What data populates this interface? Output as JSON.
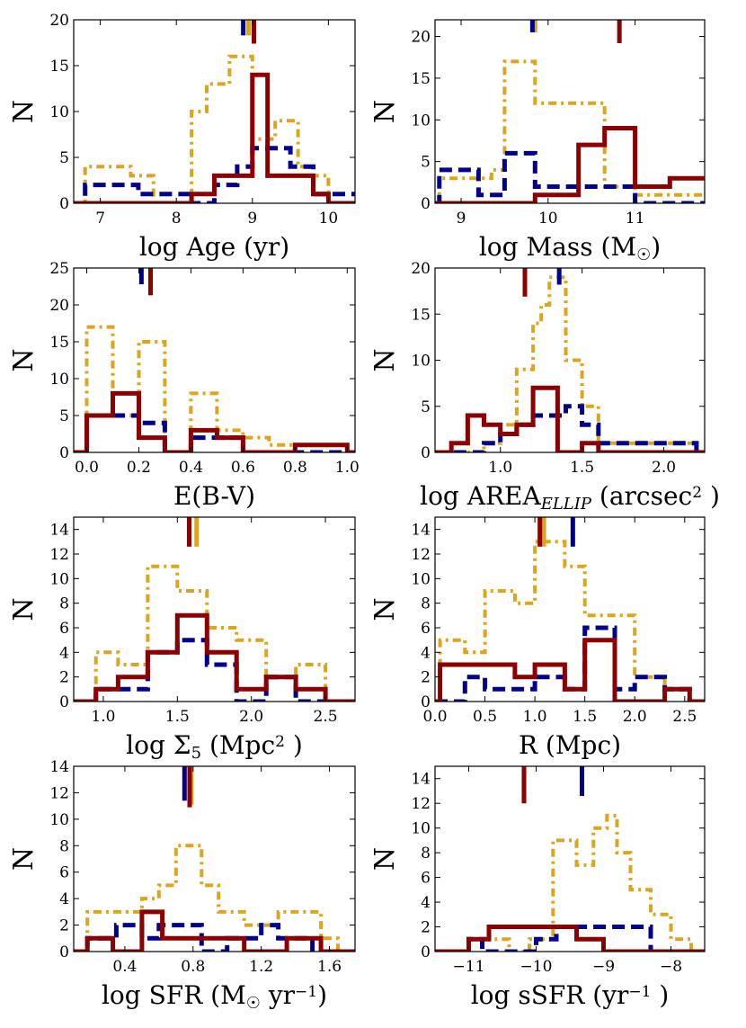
{
  "figure": {
    "description_colors": {
      "red": "#8B0000",
      "blue": "#00008B",
      "gold": "#DAA520"
    },
    "ylabel": "N"
  },
  "chart_data": [
    {
      "type": "histogram",
      "panel": "age",
      "xlabel": "log Age (yr)",
      "ylabel": "N",
      "xlim": [
        6.65,
        10.35
      ],
      "ylim": [
        0,
        20
      ],
      "xticks": [
        7,
        8,
        9,
        10
      ],
      "yticks": [
        0,
        5,
        10,
        15,
        20
      ],
      "series": [
        {
          "name": "gold-dashdot",
          "color": "#DAA520",
          "style": "dashdot",
          "bins": [
            6.65,
            6.8,
            7.1,
            7.4,
            7.7,
            8.0,
            8.2,
            8.4,
            8.7,
            9.0,
            9.1,
            9.3,
            9.6,
            9.8,
            10.0,
            10.35
          ],
          "counts": [
            0,
            4,
            4,
            3,
            0,
            0,
            10,
            13,
            16,
            7,
            7,
            9,
            4,
            3,
            0
          ]
        },
        {
          "name": "blue-dashed",
          "color": "#00008B",
          "style": "dashed",
          "bins": [
            6.65,
            6.8,
            7.2,
            7.5,
            8.2,
            8.5,
            8.8,
            9.0,
            9.2,
            9.5,
            9.8,
            10.35
          ],
          "counts": [
            0,
            2,
            2,
            1,
            0,
            2,
            4,
            6,
            6,
            4,
            1
          ]
        },
        {
          "name": "red-solid",
          "color": "#8B0000",
          "style": "solid",
          "bins": [
            6.65,
            8.0,
            8.2,
            8.5,
            8.8,
            9.0,
            9.2,
            9.5,
            9.8,
            10.0,
            10.35
          ],
          "counts": [
            0,
            0,
            1,
            3,
            3,
            14,
            3,
            3,
            1,
            0
          ]
        }
      ],
      "markers": [
        {
          "color": "#DAA520",
          "x": 8.95,
          "y0": 18.3,
          "y1": 20
        },
        {
          "color": "#00008B",
          "x": 8.88,
          "y0": 18.3,
          "y1": 20
        },
        {
          "color": "#8B0000",
          "x": 9.02,
          "y0": 17.4,
          "y1": 20
        }
      ]
    },
    {
      "type": "histogram",
      "panel": "mass",
      "xlabel": "log Mass (M☉)",
      "xlabel_main": "log Mass (M",
      "xlabel_sub": "☉",
      "xlabel_end": ")",
      "ylabel": "N",
      "xlim": [
        8.7,
        11.8
      ],
      "ylim": [
        0,
        22
      ],
      "xticks": [
        9,
        10,
        11
      ],
      "yticks": [
        0,
        5,
        10,
        15,
        20
      ],
      "series": [
        {
          "name": "gold-dashdot",
          "color": "#DAA520",
          "style": "dashdot",
          "bins": [
            8.7,
            8.75,
            9.05,
            9.35,
            9.5,
            9.85,
            10.35,
            10.65,
            11.0,
            11.3,
            11.8
          ],
          "counts": [
            0,
            3,
            3,
            4,
            17,
            12,
            12,
            2,
            1,
            1
          ]
        },
        {
          "name": "blue-dashed",
          "color": "#00008B",
          "style": "dashed",
          "bins": [
            8.7,
            8.75,
            9.05,
            9.2,
            9.5,
            9.85,
            10.0,
            10.35,
            10.7,
            11.0,
            11.3,
            11.8
          ],
          "counts": [
            0,
            4,
            4,
            1,
            6,
            2,
            2,
            2,
            2,
            0,
            0
          ]
        },
        {
          "name": "red-solid",
          "color": "#8B0000",
          "style": "solid",
          "bins": [
            8.7,
            9.85,
            10.35,
            10.65,
            11.0,
            11.4,
            11.8
          ],
          "counts": [
            0,
            1,
            7,
            9,
            2,
            3
          ]
        }
      ],
      "markers": [
        {
          "color": "#DAA520",
          "x": 9.85,
          "y0": 20.5,
          "y1": 22
        },
        {
          "color": "#00008B",
          "x": 9.82,
          "y0": 20.5,
          "y1": 22
        },
        {
          "color": "#8B0000",
          "x": 10.82,
          "y0": 19.2,
          "y1": 22
        }
      ]
    },
    {
      "type": "histogram",
      "panel": "ebv",
      "xlabel": "E(B-V)",
      "ylabel": "N",
      "xlim": [
        -0.05,
        1.03
      ],
      "ylim": [
        0,
        25
      ],
      "xticks": [
        0.0,
        0.2,
        0.4,
        0.6,
        0.8,
        1.0
      ],
      "yticks": [
        0,
        5,
        10,
        15,
        20,
        25
      ],
      "series": [
        {
          "name": "gold-dashdot",
          "color": "#DAA520",
          "style": "dashdot",
          "bins": [
            -0.05,
            0.0,
            0.1,
            0.2,
            0.3,
            0.4,
            0.5,
            0.6,
            0.7,
            0.8,
            1.0,
            1.03
          ],
          "counts": [
            0,
            17,
            5,
            15,
            0,
            8,
            3,
            2,
            1,
            1,
            0
          ]
        },
        {
          "name": "blue-dashed",
          "color": "#00008B",
          "style": "dashed",
          "bins": [
            -0.05,
            0.0,
            0.1,
            0.2,
            0.3,
            0.4,
            0.5,
            0.6,
            1.03
          ],
          "counts": [
            0,
            5,
            5,
            4,
            0,
            2,
            2,
            0
          ]
        },
        {
          "name": "red-solid",
          "color": "#8B0000",
          "style": "solid",
          "bins": [
            -0.05,
            0.0,
            0.1,
            0.2,
            0.3,
            0.4,
            0.5,
            0.6,
            0.8,
            1.0,
            1.03
          ],
          "counts": [
            0,
            5,
            8,
            2,
            0,
            3,
            2,
            0,
            1,
            0
          ]
        }
      ],
      "markers": [
        {
          "color": "#00008B",
          "x": 0.21,
          "y0": 22.8,
          "y1": 25
        },
        {
          "color": "#8B0000",
          "x": 0.245,
          "y0": 21.3,
          "y1": 25
        }
      ]
    },
    {
      "type": "histogram",
      "panel": "area",
      "xlabel": "log AREA_ELLIP (arcsec² )",
      "xlabel_main": "log AREA",
      "xlabel_sub": "ELLIP",
      "xlabel_end": " (arcsec",
      "xlabel_sup": "2",
      "xlabel_close": " )",
      "ylabel": "N",
      "xlim": [
        0.6,
        2.25
      ],
      "ylim": [
        0,
        20
      ],
      "xticks": [
        1.0,
        1.5,
        2.0
      ],
      "yticks": [
        0,
        5,
        10,
        15,
        20
      ],
      "series": [
        {
          "name": "gold-dashdot",
          "color": "#DAA520",
          "style": "dashdot",
          "bins": [
            0.6,
            0.9,
            1.0,
            1.1,
            1.2,
            1.25,
            1.3,
            1.4,
            1.5,
            1.6,
            2.2,
            2.25
          ],
          "counts": [
            0,
            1,
            3,
            9,
            14,
            16,
            19,
            10,
            5,
            1,
            0
          ]
        },
        {
          "name": "blue-dashed",
          "color": "#00008B",
          "style": "dashed",
          "bins": [
            0.6,
            0.9,
            1.0,
            1.1,
            1.2,
            1.3,
            1.4,
            1.5,
            1.6,
            2.2,
            2.25
          ],
          "counts": [
            0,
            1,
            2,
            3,
            4,
            4,
            5,
            3,
            1,
            0
          ]
        },
        {
          "name": "red-solid",
          "color": "#8B0000",
          "style": "solid",
          "bins": [
            0.6,
            0.7,
            0.8,
            0.9,
            1.0,
            1.1,
            1.2,
            1.35,
            1.5,
            1.6,
            2.25
          ],
          "counts": [
            0,
            1,
            4,
            3,
            2,
            3,
            7,
            0,
            1,
            0
          ]
        }
      ],
      "markers": [
        {
          "color": "#00008B",
          "x": 1.36,
          "y0": 18.2,
          "y1": 20
        },
        {
          "color": "#8B0000",
          "x": 1.15,
          "y0": 16.9,
          "y1": 20
        }
      ]
    },
    {
      "type": "histogram",
      "panel": "sigma5",
      "xlabel": "log Σ5 (Mpc² )",
      "xlabel_main": "log Σ",
      "xlabel_sub": "5",
      "xlabel_end": " (Mpc",
      "xlabel_sup": "2",
      "xlabel_close": " )",
      "ylabel": "N",
      "xlim": [
        0.8,
        2.7
      ],
      "ylim": [
        0,
        15
      ],
      "xticks": [
        1.0,
        1.5,
        2.0,
        2.5
      ],
      "yticks": [
        0,
        2,
        4,
        6,
        8,
        10,
        12,
        14
      ],
      "series": [
        {
          "name": "gold-dashdot",
          "color": "#DAA520",
          "style": "dashdot",
          "bins": [
            0.8,
            0.95,
            1.1,
            1.3,
            1.5,
            1.7,
            1.9,
            2.1,
            2.3,
            2.5,
            2.7
          ],
          "counts": [
            0,
            4,
            3,
            11,
            9,
            6,
            5,
            2,
            3,
            0
          ]
        },
        {
          "name": "blue-dashed",
          "color": "#00008B",
          "style": "dashed",
          "bins": [
            0.8,
            0.95,
            1.1,
            1.3,
            1.5,
            1.7,
            1.9,
            2.1,
            2.3,
            2.7
          ],
          "counts": [
            0,
            1,
            1,
            4,
            5,
            3,
            0,
            2,
            0
          ]
        },
        {
          "name": "red-solid",
          "color": "#8B0000",
          "style": "solid",
          "bins": [
            0.8,
            0.95,
            1.1,
            1.3,
            1.5,
            1.7,
            1.9,
            2.1,
            2.3,
            2.5,
            2.7
          ],
          "counts": [
            0,
            1,
            2,
            4,
            7,
            4,
            1,
            2,
            1,
            0
          ]
        }
      ],
      "markers": [
        {
          "color": "#DAA520",
          "x": 1.63,
          "y0": 12.6,
          "y1": 15
        },
        {
          "color": "#8B0000",
          "x": 1.58,
          "y0": 12.6,
          "y1": 15
        }
      ]
    },
    {
      "type": "histogram",
      "panel": "radius",
      "xlabel": "R (Mpc)",
      "ylabel": "N",
      "xlim": [
        0.0,
        2.7
      ],
      "ylim": [
        0,
        15
      ],
      "xticks": [
        0.0,
        0.5,
        1.0,
        1.5,
        2.0,
        2.5
      ],
      "yticks": [
        0,
        2,
        4,
        6,
        8,
        10,
        12,
        14
      ],
      "series": [
        {
          "name": "gold-dashdot",
          "color": "#DAA520",
          "style": "dashdot",
          "bins": [
            0.0,
            0.05,
            0.3,
            0.5,
            0.8,
            1.0,
            1.3,
            1.5,
            1.8,
            2.0,
            2.3,
            2.55,
            2.7
          ],
          "counts": [
            0,
            5,
            4,
            9,
            8,
            13,
            11,
            7,
            7,
            2,
            1,
            0
          ]
        },
        {
          "name": "blue-dashed",
          "color": "#00008B",
          "style": "dashed",
          "bins": [
            0.0,
            0.05,
            0.3,
            0.5,
            0.8,
            1.0,
            1.3,
            1.5,
            1.8,
            2.0,
            2.3,
            2.55,
            2.7
          ],
          "counts": [
            0,
            0,
            2,
            1,
            1,
            2,
            1,
            6,
            1,
            2,
            1,
            0
          ]
        },
        {
          "name": "red-solid",
          "color": "#8B0000",
          "style": "solid",
          "bins": [
            0.0,
            0.05,
            0.8,
            1.0,
            1.3,
            1.5,
            1.8,
            2.0,
            2.3,
            2.55,
            2.7
          ],
          "counts": [
            0,
            3,
            2,
            3,
            1,
            5,
            0,
            0,
            1,
            0
          ]
        }
      ],
      "markers": [
        {
          "color": "#DAA520",
          "x": 1.09,
          "y0": 12.6,
          "y1": 15
        },
        {
          "color": "#8B0000",
          "x": 1.05,
          "y0": 12.6,
          "y1": 15
        },
        {
          "color": "#00008B",
          "x": 1.38,
          "y0": 12.6,
          "y1": 15
        }
      ]
    },
    {
      "type": "histogram",
      "panel": "sfr",
      "xlabel": "log SFR (M☉ yr⁻¹)",
      "xlabel_main": "log SFR (M",
      "xlabel_sub": "☉",
      "xlabel_end": " yr",
      "xlabel_sup": "−1",
      "xlabel_close": ")",
      "ylabel": "N",
      "xlim": [
        0.1,
        1.75
      ],
      "ylim": [
        0,
        14
      ],
      "xticks": [
        0.4,
        0.8,
        1.2,
        1.6
      ],
      "yticks": [
        0,
        2,
        4,
        6,
        8,
        10,
        12,
        14
      ],
      "series": [
        {
          "name": "gold-dashdot",
          "color": "#DAA520",
          "style": "dashdot",
          "bins": [
            0.1,
            0.18,
            0.5,
            0.6,
            0.7,
            0.85,
            0.95,
            1.1,
            1.2,
            1.3,
            1.55,
            1.65,
            1.75
          ],
          "counts": [
            0,
            3,
            4,
            5,
            8,
            5,
            3,
            2,
            2,
            3,
            1,
            0
          ]
        },
        {
          "name": "blue-dashed",
          "color": "#00008B",
          "style": "dashed",
          "bins": [
            0.1,
            0.18,
            0.35,
            0.5,
            0.6,
            0.85,
            1.0,
            1.2,
            1.3,
            1.5,
            1.75
          ],
          "counts": [
            0,
            1,
            2,
            1,
            2,
            0,
            1,
            2,
            1,
            0
          ]
        },
        {
          "name": "red-solid",
          "color": "#8B0000",
          "style": "solid",
          "bins": [
            0.1,
            0.18,
            0.33,
            0.5,
            0.62,
            1.1,
            1.35,
            1.55,
            1.75
          ],
          "counts": [
            0,
            1,
            0,
            3,
            1,
            0,
            1,
            0
          ]
        }
      ],
      "markers": [
        {
          "color": "#DAA520",
          "x": 0.79,
          "y0": 11.1,
          "y1": 14
        },
        {
          "color": "#00008B",
          "x": 0.75,
          "y0": 11.4,
          "y1": 14
        },
        {
          "color": "#8B0000",
          "x": 0.78,
          "y0": 10.9,
          "y1": 14
        }
      ]
    },
    {
      "type": "histogram",
      "panel": "ssfr",
      "xlabel": "log sSFR (yr⁻¹ )",
      "xlabel_main": "log sSFR (yr",
      "xlabel_sup": "−1",
      "xlabel_close": " )",
      "ylabel": "N",
      "xlim": [
        -11.5,
        -7.5
      ],
      "ylim": [
        0,
        15
      ],
      "xticks": [
        -11,
        -10,
        -9,
        -8
      ],
      "yticks": [
        0,
        2,
        4,
        6,
        8,
        10,
        12,
        14
      ],
      "series": [
        {
          "name": "gold-dashdot",
          "color": "#DAA520",
          "style": "dashdot",
          "bins": [
            -11.5,
            -11.0,
            -10.8,
            -10.4,
            -10.1,
            -9.75,
            -9.4,
            -9.15,
            -8.95,
            -8.8,
            -8.6,
            -8.3,
            -8.0,
            -7.7,
            -7.5
          ],
          "counts": [
            0,
            1,
            1,
            0,
            1,
            9,
            7,
            10,
            11,
            8,
            5,
            3,
            1,
            0
          ]
        },
        {
          "name": "blue-dashed",
          "color": "#00008B",
          "style": "dashed",
          "bins": [
            -11.5,
            -11.0,
            -10.8,
            -10.4,
            -10.0,
            -9.7,
            -8.6,
            -8.3,
            -7.5
          ],
          "counts": [
            0,
            1,
            0,
            0,
            1,
            2,
            2,
            0
          ]
        },
        {
          "name": "red-solid",
          "color": "#8B0000",
          "style": "solid",
          "bins": [
            -11.5,
            -11.0,
            -10.7,
            -9.4,
            -9.0,
            -7.5
          ],
          "counts": [
            0,
            1,
            2,
            1,
            0
          ]
        }
      ],
      "markers": [
        {
          "color": "#8B0000",
          "x": -10.18,
          "y0": 12,
          "y1": 15
        },
        {
          "color": "#00008B",
          "x": -9.32,
          "y0": 12.6,
          "y1": 15
        }
      ]
    }
  ]
}
